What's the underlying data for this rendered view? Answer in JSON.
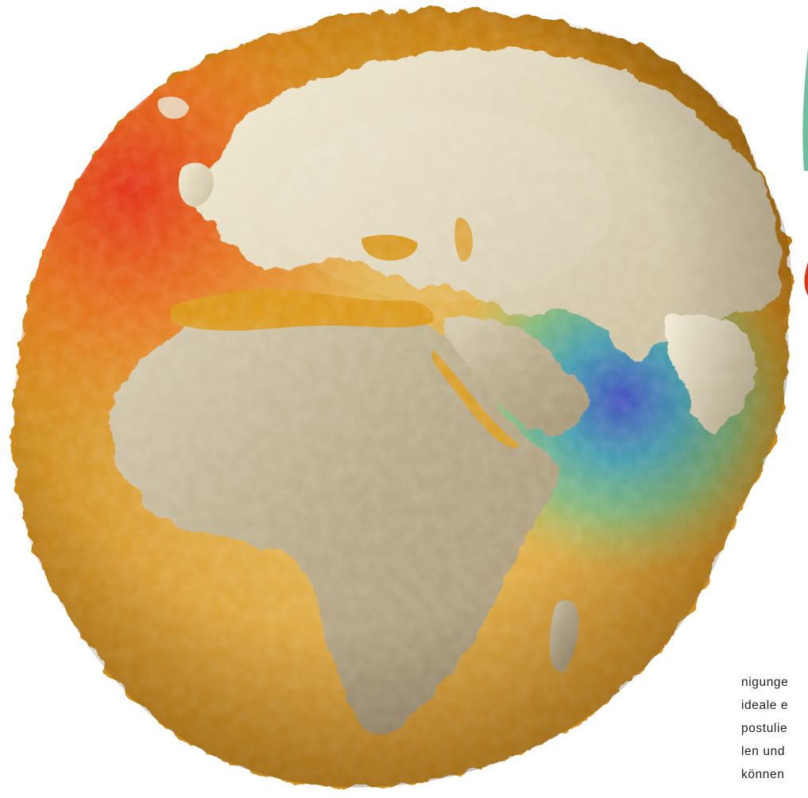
{
  "article": {
    "text_lines": [
      "nigunge",
      "ideale e",
      "postulie",
      "len und",
      "können"
    ]
  },
  "image": {
    "subject": "geoid-globe",
    "palette": {
      "background": "#ffffff",
      "land": "#b8a888",
      "land_highlight": "#ece4c8",
      "ocean_gold": "#d99a1c",
      "ocean_orange": "#e8661c",
      "ocean_red": "#d83418",
      "ocean_cyan": "#39b3b0",
      "ocean_blue": "#4a5fc8",
      "ocean_green": "#6cc08a"
    }
  }
}
